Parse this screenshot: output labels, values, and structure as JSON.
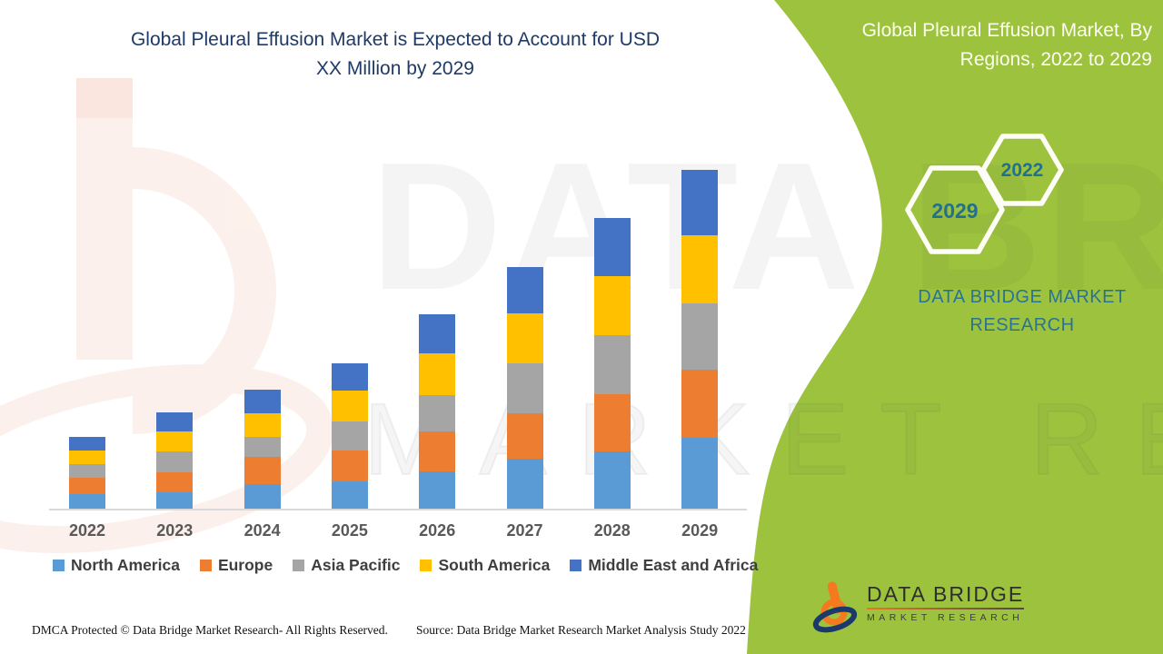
{
  "header": {
    "title_line1": "Global Pleural Effusion Market is Expected to Account for USD",
    "title_line2": "XX Million by 2029"
  },
  "side_panel": {
    "title_line1": "Global Pleural Effusion Market, By",
    "title_line2": "Regions, 2022 to 2029",
    "hexagons": [
      {
        "label": "2029"
      },
      {
        "label": "2022"
      }
    ],
    "brand_text": "DATA BRIDGE MARKET RESEARCH",
    "bg_color": "#9dc33e",
    "title_color": "#fcfdf0",
    "accent_text_color": "#23708e"
  },
  "chart_data": {
    "type": "bar",
    "stacked": true,
    "title": "Global Pleural Effusion Market is Expected to Account for USD XX Million by 2029",
    "xlabel": "",
    "ylabel": "",
    "units": "USD XX Million (actual values undisclosed; values below are relative magnitudes read from bar pixel heights)",
    "y_axis_visible": false,
    "gridlines": false,
    "legend_position": "bottom",
    "categories": [
      "2022",
      "2023",
      "2024",
      "2025",
      "2026",
      "2027",
      "2028",
      "2029"
    ],
    "series": [
      {
        "name": "North America",
        "color": "#5B9BD5",
        "values": [
          16,
          18,
          27,
          30,
          41,
          55,
          63,
          78
        ]
      },
      {
        "name": "Europe",
        "color": "#ED7D31",
        "values": [
          18,
          22,
          30,
          34,
          44,
          50,
          63,
          75
        ]
      },
      {
        "name": "Asia Pacific",
        "color": "#A5A5A5",
        "values": [
          15,
          23,
          22,
          32,
          40,
          55,
          65,
          73
        ]
      },
      {
        "name": "South America",
        "color": "#FFC000",
        "values": [
          15,
          22,
          26,
          34,
          46,
          55,
          65,
          75
        ]
      },
      {
        "name": "Middle East and Africa",
        "color": "#4472C4",
        "values": [
          15,
          21,
          26,
          30,
          43,
          51,
          64,
          72
        ]
      }
    ],
    "totals": [
      79,
      106,
      131,
      160,
      214,
      266,
      320,
      373
    ]
  },
  "watermarks": {
    "line1": "DATA BRIDGE",
    "line2": "MARKET RESEARCH"
  },
  "footer": {
    "dmca": "DMCA Protected © Data Bridge Market Research- All Rights Reserved.",
    "source": "Source: Data Bridge Market Research Market Analysis Study 2022"
  },
  "logo": {
    "title": "DATA BRIDGE",
    "subtitle": "MARKET RESEARCH"
  }
}
